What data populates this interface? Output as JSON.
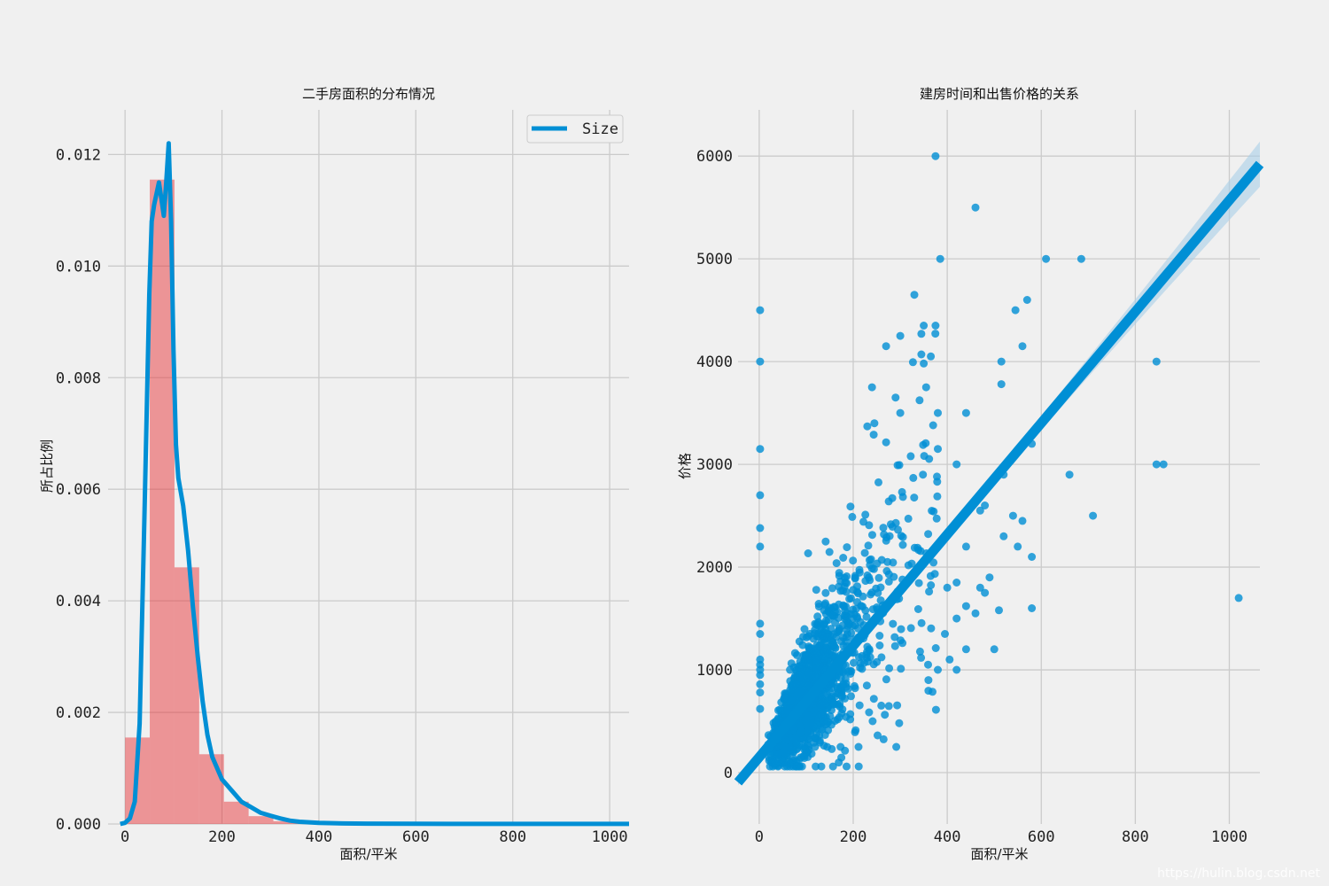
{
  "watermark": "https://hulin.blog.csdn.net",
  "chart_data": [
    {
      "type": "bar",
      "title": "二手房面积的分布情况",
      "xlabel": "面积/平米",
      "ylabel": "所占比例",
      "xlim": [
        -35,
        1040
      ],
      "ylim": [
        0,
        0.0128
      ],
      "xticks": [
        0,
        200,
        400,
        600,
        800,
        1000
      ],
      "yticks": [
        0.0,
        0.002,
        0.004,
        0.006,
        0.008,
        0.01,
        0.012
      ],
      "ytick_labels": [
        "0.000",
        "0.002",
        "0.004",
        "0.006",
        "0.008",
        "0.010",
        "0.012"
      ],
      "grid": true,
      "colors": {
        "hist": "#e8383b",
        "line": "#008fd5",
        "grid": "#cbcbcb",
        "background": "#f0f0f0"
      },
      "histogram": {
        "bin_edges": [
          0,
          51,
          102,
          153,
          204,
          255,
          306,
          357,
          408,
          459,
          510,
          561,
          612,
          663,
          714,
          765,
          816,
          867,
          918,
          969,
          1020
        ],
        "values": [
          0.00155,
          0.01155,
          0.0046,
          0.00125,
          0.0004,
          0.00014,
          5e-05,
          2e-05,
          1e-05,
          5e-06,
          4e-06,
          3e-06,
          2e-06,
          2e-06,
          1e-06,
          1e-06,
          1e-06,
          1e-06,
          1e-06,
          1e-06
        ]
      },
      "legend": {
        "position": "upper-right",
        "entries": [
          "Size"
        ]
      },
      "series": [
        {
          "name": "Size",
          "type": "line",
          "x": [
            -10,
            0,
            10,
            20,
            30,
            40,
            50,
            55,
            60,
            65,
            70,
            75,
            80,
            85,
            90,
            95,
            100,
            105,
            110,
            120,
            130,
            140,
            150,
            160,
            170,
            180,
            200,
            220,
            240,
            260,
            280,
            300,
            320,
            340,
            360,
            380,
            400,
            450,
            500,
            600,
            700,
            800,
            900,
            1000,
            1040
          ],
          "values": [
            0,
            2e-05,
            0.0001,
            0.0004,
            0.0018,
            0.0055,
            0.0095,
            0.0108,
            0.0111,
            0.0113,
            0.0115,
            0.0112,
            0.0109,
            0.0115,
            0.0122,
            0.0108,
            0.0085,
            0.0068,
            0.0062,
            0.0057,
            0.0049,
            0.0039,
            0.003,
            0.0022,
            0.0016,
            0.0012,
            0.0008,
            0.0006,
            0.0004,
            0.0003,
            0.0002,
            0.00015,
            0.0001,
            6e-05,
            4e-05,
            3e-05,
            2e-05,
            1e-05,
            6e-06,
            3e-06,
            2e-06,
            1e-06,
            1e-06,
            1e-06,
            1e-06
          ]
        }
      ]
    },
    {
      "type": "scatter",
      "title": "建房时间和出售价格的关系",
      "xlabel": "面积/平米",
      "ylabel": "价格",
      "xlim": [
        -45,
        1065
      ],
      "ylim": [
        -500,
        6450
      ],
      "xticks": [
        0,
        200,
        400,
        600,
        800,
        1000
      ],
      "yticks": [
        0,
        1000,
        2000,
        3000,
        4000,
        5000,
        6000
      ],
      "grid": true,
      "colors": {
        "points": "#008fd5",
        "line": "#008fd5",
        "band": "#a9cfe8",
        "grid": "#cbcbcb"
      },
      "regression": {
        "slope": 5.42,
        "intercept": 150,
        "ci_halfwidth_at_edge": 200
      },
      "series": [
        {
          "type": "scatter",
          "points": [
            [
              375,
              6000
            ],
            [
              460,
              5500
            ],
            [
              385,
              5000
            ],
            [
              610,
              5000
            ],
            [
              685,
              5000
            ],
            [
              2,
              4500
            ],
            [
              330,
              4650
            ],
            [
              570,
              4600
            ],
            [
              545,
              4500
            ],
            [
              350,
              4350
            ],
            [
              375,
              4350
            ],
            [
              560,
              4150
            ],
            [
              345,
              4270
            ],
            [
              300,
              4250
            ],
            [
              270,
              4150
            ],
            [
              2,
              4000
            ],
            [
              345,
              4070
            ],
            [
              365,
              4050
            ],
            [
              515,
              4000
            ],
            [
              845,
              4000
            ],
            [
              515,
              3780
            ],
            [
              355,
              3750
            ],
            [
              240,
              3750
            ],
            [
              290,
              3650
            ],
            [
              440,
              3500
            ],
            [
              380,
              3500
            ],
            [
              300,
              3500
            ],
            [
              245,
              3400
            ],
            [
              230,
              3370
            ],
            [
              370,
              3380
            ],
            [
              2,
              3150
            ],
            [
              380,
              3150
            ],
            [
              845,
              3000
            ],
            [
              860,
              3000
            ],
            [
              420,
              3000
            ],
            [
              2,
              2700
            ],
            [
              660,
              2900
            ],
            [
              520,
              2900
            ],
            [
              580,
              3200
            ],
            [
              710,
              2500
            ],
            [
              2,
              2380
            ],
            [
              2,
              2200
            ],
            [
              480,
              2600
            ],
            [
              540,
              2500
            ],
            [
              470,
              2550
            ],
            [
              560,
              2450
            ],
            [
              580,
              2100
            ],
            [
              550,
              2200
            ],
            [
              440,
              2200
            ],
            [
              520,
              2300
            ],
            [
              2,
              1450
            ],
            [
              2,
              1350
            ],
            [
              580,
              1600
            ],
            [
              510,
              1580
            ],
            [
              480,
              1750
            ],
            [
              470,
              1800
            ],
            [
              490,
              1900
            ],
            [
              460,
              1550
            ],
            [
              500,
              1200
            ],
            [
              440,
              1620
            ],
            [
              2,
              1100
            ],
            [
              2,
              1050
            ],
            [
              2,
              1000
            ],
            [
              2,
              950
            ],
            [
              2,
              860
            ],
            [
              2,
              780
            ],
            [
              2,
              620
            ],
            [
              1020,
              1700
            ],
            [
              420,
              1500
            ],
            [
              405,
              1100
            ],
            [
              395,
              1350
            ],
            [
              380,
              1000
            ],
            [
              360,
              900
            ],
            [
              420,
              1000
            ],
            [
              440,
              1200
            ],
            [
              400,
              1800
            ],
            [
              420,
              1850
            ]
          ]
        }
      ]
    }
  ]
}
